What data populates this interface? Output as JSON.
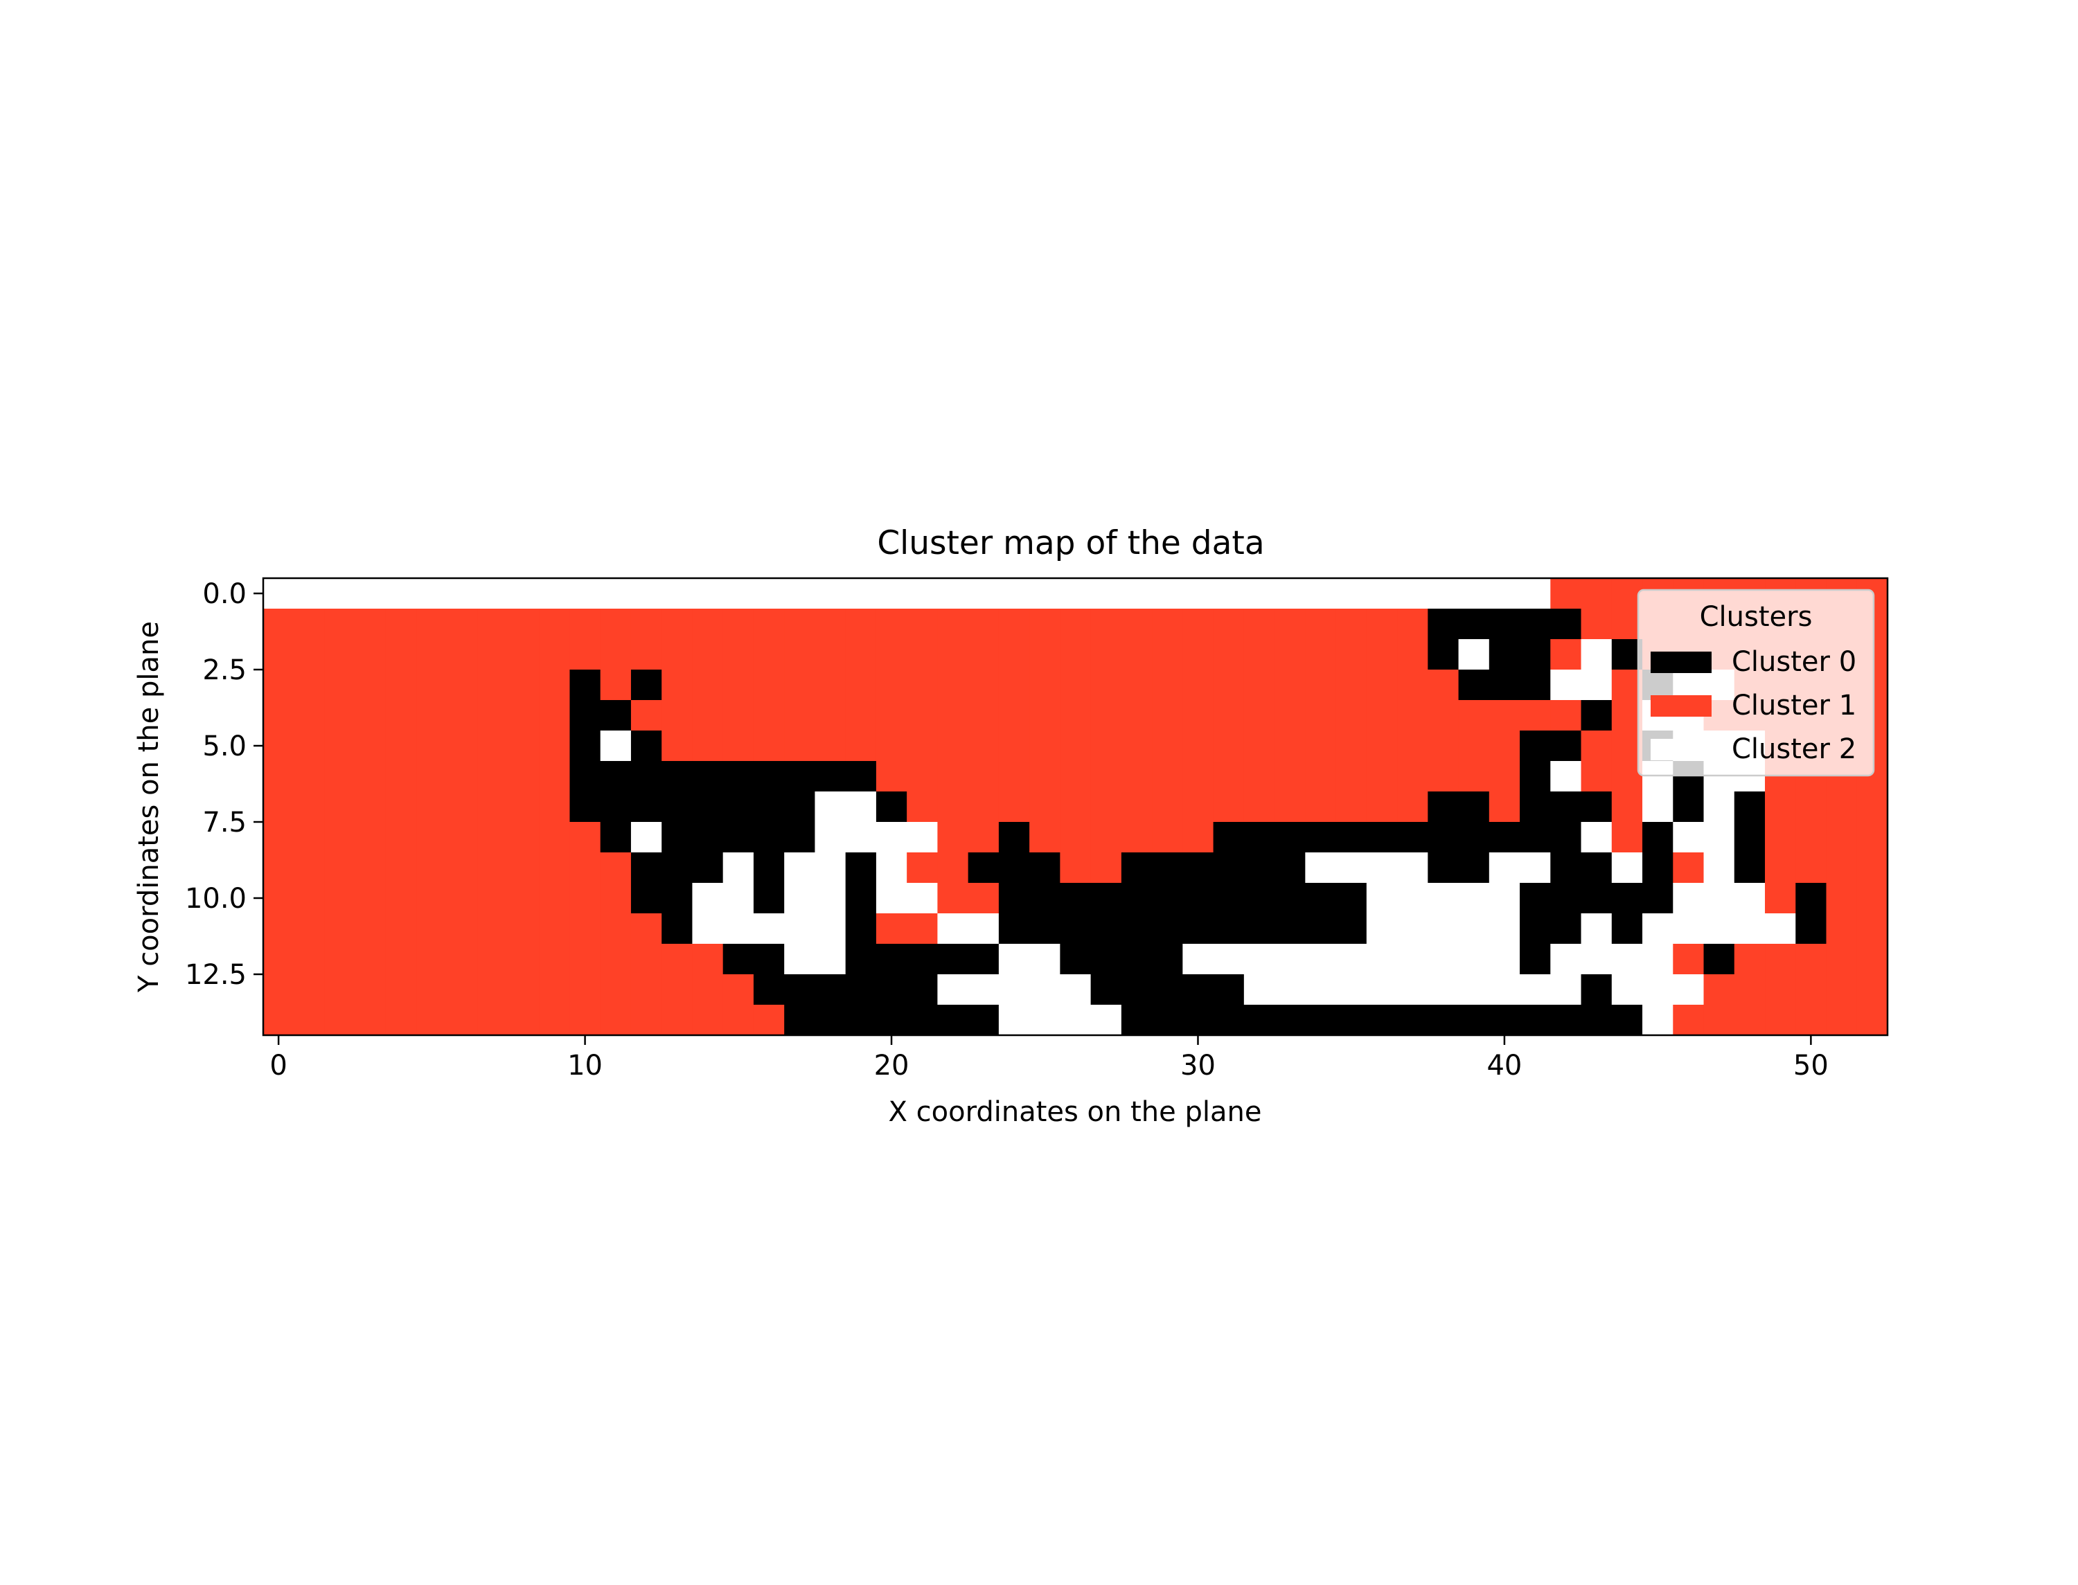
{
  "chart_data": {
    "type": "heatmap",
    "title": "Cluster map of the data",
    "xlabel": "X coordinates on the plane",
    "ylabel": "Y coordinates on the plane",
    "x_ticks": [
      0,
      10,
      20,
      30,
      40,
      50
    ],
    "x_tick_labels": [
      "0",
      "10",
      "20",
      "30",
      "40",
      "50"
    ],
    "y_ticks": [
      0.0,
      2.5,
      5.0,
      7.5,
      10.0,
      12.5
    ],
    "y_tick_labels": [
      "0.0",
      "2.5",
      "5.0",
      "7.5",
      "10.0",
      "12.5"
    ],
    "xlim": [
      -0.5,
      52.5
    ],
    "ylim": [
      14.5,
      -0.5
    ],
    "n_cols": 53,
    "n_rows": 15,
    "legend": {
      "title": "Clusters",
      "placement": "upper right",
      "entries": [
        {
          "label": "Cluster 0",
          "color": "#000000"
        },
        {
          "label": "Cluster 1",
          "color": "#ff4127"
        },
        {
          "label": "Cluster 2",
          "color": "#ffffff"
        }
      ]
    },
    "colors": {
      "0": "#000000",
      "1": "#ff4127",
      "2": "#ffffff"
    },
    "grid": [
      "22222222222222222222222222222222222222222211111111111",
      "11111111111111111111111111111111111111000001111111111",
      "11111111111111111111111111111111111111020012011111111",
      "11111111110101111111111111111111111111100022102211111",
      "11111111110011111111111111111111111111111110122111111",
      "11111111110201111111111111111111111111111001102221111",
      "11111111110000000000111111111111111111111021120221111",
      "11111111110000000022011111111111111111001000120201111",
      "11111111111020000022221101111110000000000002102201111",
      "11111111111100020220211000110000002222002200201201111",
      "11111111111100220220221100000000000022222000002221011",
      "11111111111110222220112200000000000022222002022222011",
      "11111111111111100220000022000022222222222022221011111",
      "11111111111111110000002222200000222222222220222111111",
      "11111111111111111000000022220000000000000000021111111"
    ]
  }
}
